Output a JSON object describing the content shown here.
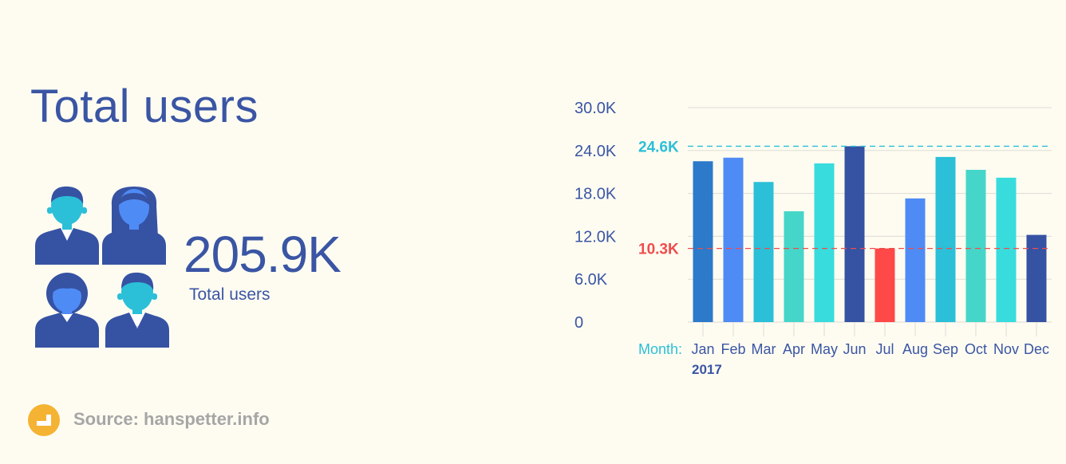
{
  "header": {
    "title": "Total users"
  },
  "kpi": {
    "value": "205.9K",
    "label": "Total users"
  },
  "source": {
    "text": "Source: hanspetter.info",
    "icon": "source-icon"
  },
  "icons": {
    "users": "users-group-icon"
  },
  "colors": {
    "background": "#FEFCF1",
    "text": "#3A55A4",
    "max_line": "#2BBFD8",
    "min_line": "#F04C4C",
    "source_icon": "#F5B333"
  },
  "chart_data": {
    "type": "bar",
    "categories": [
      "Jan",
      "Feb",
      "Mar",
      "Apr",
      "May",
      "Jun",
      "Jul",
      "Aug",
      "Sep",
      "Oct",
      "Nov",
      "Dec"
    ],
    "values": [
      22.5,
      23.0,
      19.6,
      15.5,
      22.2,
      24.6,
      10.3,
      17.3,
      23.1,
      21.3,
      20.2,
      12.2
    ],
    "colors": [
      "#2C7AC9",
      "#4F8BF5",
      "#2BBFD8",
      "#45D6C9",
      "#38DCDD",
      "#3652A3",
      "#FF4848",
      "#4F8BF5",
      "#2BBFD8",
      "#45D6C9",
      "#38DCDD",
      "#3652A3"
    ],
    "ylim": [
      0,
      30
    ],
    "yticks": [
      0,
      6,
      12,
      18,
      24,
      30
    ],
    "ytick_labels": [
      "0",
      "6.0K",
      "12.0K",
      "18.0K",
      "24.0K",
      "30.0K"
    ],
    "x_axis_label": "Month:",
    "year_label": "2017",
    "reference_lines": [
      {
        "value": 24.6,
        "label": "24.6K",
        "color": "#2BBFD8"
      },
      {
        "value": 10.3,
        "label": "10.3K",
        "color": "#F04C4C"
      }
    ],
    "grid": true
  }
}
